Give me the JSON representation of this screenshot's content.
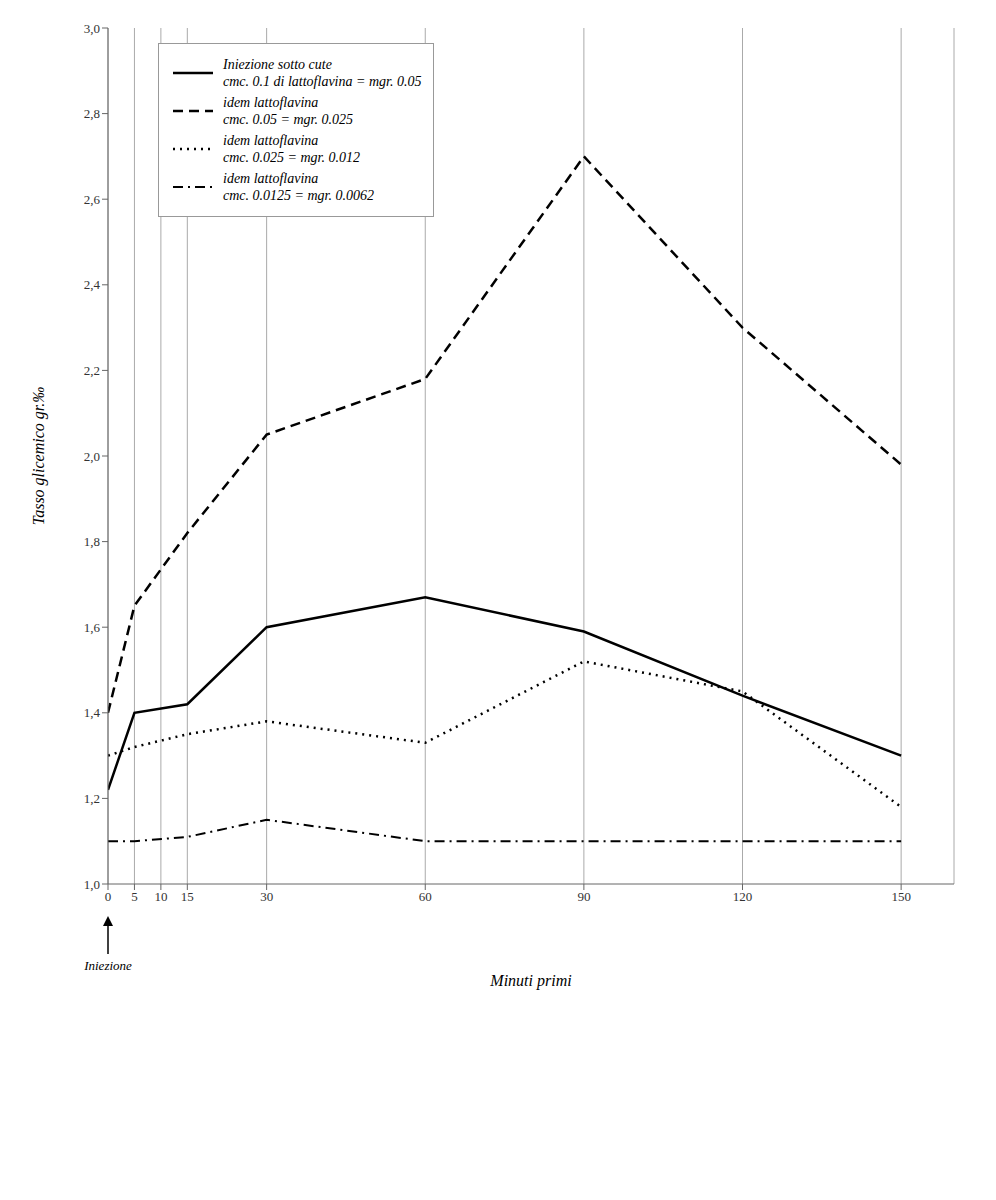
{
  "chart_data": {
    "type": "line",
    "xlabel": "Minuti primi",
    "ylabel": "Tasso glicemico gr.‰",
    "x": [
      0,
      5,
      15,
      30,
      60,
      90,
      120,
      150
    ],
    "series": [
      {
        "name": "Iniezione sotto cute\ncmc. 0.1 di lattoflavina = mgr. 0.05",
        "color": "#000000",
        "line_style": "solid",
        "values": [
          1.22,
          1.4,
          1.42,
          1.6,
          1.67,
          1.59,
          1.44,
          1.3
        ]
      },
      {
        "name": "idem lattoflavina\ncmc. 0.05 = mgr. 0.025",
        "color": "#000000",
        "line_style": "dashed",
        "values": [
          1.4,
          1.65,
          1.82,
          2.05,
          2.18,
          2.7,
          2.3,
          1.98
        ]
      },
      {
        "name": "idem lattoflavina\ncmc. 0.025 = mgr. 0.012",
        "color": "#000000",
        "line_style": "dotted",
        "values": [
          1.3,
          1.32,
          1.35,
          1.38,
          1.33,
          1.52,
          1.45,
          1.18
        ]
      },
      {
        "name": "idem lattoflavina\ncmc. 0.0125 = mgr. 0.0062",
        "color": "#000000",
        "line_style": "dashdot",
        "values": [
          1.1,
          1.1,
          1.11,
          1.15,
          1.1,
          1.1,
          1.1,
          1.1
        ]
      }
    ],
    "xlim": [
      0,
      160
    ],
    "ylim": [
      1.0,
      3.0
    ],
    "xticks": [
      0,
      5,
      10,
      15,
      30,
      60,
      90,
      120,
      150
    ],
    "yticks": [
      {
        "value": 1.0,
        "label": "1,0"
      },
      {
        "value": 1.2,
        "label": "1,2"
      },
      {
        "value": 1.4,
        "label": "1,4"
      },
      {
        "value": 1.6,
        "label": "1,6"
      },
      {
        "value": 1.8,
        "label": "1,8"
      },
      {
        "value": 2.0,
        "label": "2,0"
      },
      {
        "value": 2.2,
        "label": "2,2"
      },
      {
        "value": 2.4,
        "label": "2,4"
      },
      {
        "value": 2.6,
        "label": "2,6"
      },
      {
        "value": 2.8,
        "label": "2,8"
      },
      {
        "value": 3.0,
        "label": "3,0"
      }
    ],
    "grid": "x",
    "legend": "upper left",
    "annotations": [
      {
        "x": 0,
        "text": "Iniezione"
      }
    ]
  }
}
